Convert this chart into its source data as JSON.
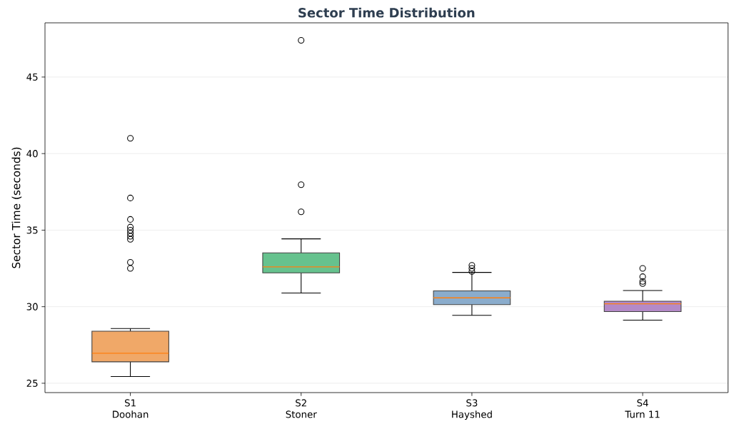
{
  "chart_data": {
    "type": "box",
    "title": "Sector Time Distribution",
    "ylabel": "Sector Time (seconds)",
    "categories": [
      "S1\nDoohan",
      "S2\nStoner",
      "S3\nHayshed",
      "S4\nTurn 11"
    ],
    "colors": [
      "#f0a868",
      "#66c28e",
      "#8aaccc",
      "#b48ac8"
    ],
    "boxes": [
      {
        "low": 25.44,
        "q1": 26.4,
        "median": 26.96,
        "q3": 28.4,
        "high": 28.57,
        "outliers": [
          41.0,
          37.1,
          35.7,
          35.2,
          35.0,
          34.8,
          34.6,
          34.4,
          32.9,
          32.5
        ]
      },
      {
        "low": 30.89,
        "q1": 32.21,
        "median": 32.6,
        "q3": 33.52,
        "high": 34.43,
        "outliers": [
          47.4,
          37.97,
          36.2
        ]
      },
      {
        "low": 29.44,
        "q1": 30.14,
        "median": 30.58,
        "q3": 31.03,
        "high": 32.24,
        "outliers": [
          32.7,
          32.5,
          32.3
        ]
      },
      {
        "low": 29.12,
        "q1": 29.68,
        "median": 30.19,
        "q3": 30.36,
        "high": 31.06,
        "outliers": [
          32.5,
          31.96,
          31.65,
          31.51
        ]
      }
    ],
    "ylim": [
      24.39,
      48.54
    ],
    "yticks": [
      25,
      30,
      35,
      40,
      45
    ],
    "grid": "y",
    "marker": "circle"
  }
}
